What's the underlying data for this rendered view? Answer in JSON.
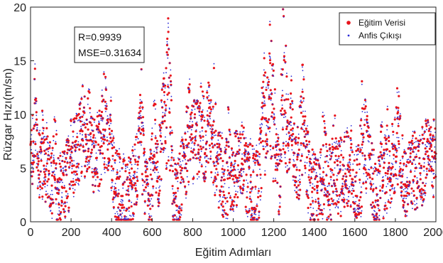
{
  "chart_data": {
    "type": "scatter",
    "title": "",
    "xlabel": "Eğitim Adımları",
    "ylabel": "Rüzgar Hızı(m/sn)",
    "xlim": [
      0,
      2000
    ],
    "ylim": [
      0,
      20
    ],
    "xticks": [
      "0",
      "200",
      "400",
      "600",
      "800",
      "1000",
      "1200",
      "1400",
      "1600",
      "1800",
      "2000"
    ],
    "yticks": [
      "0",
      "5",
      "10",
      "15",
      "20"
    ],
    "grid": false,
    "legend_position": "top-right",
    "annotation": {
      "line1": "R=0.9939",
      "line2": "MSE=0.31634"
    },
    "series": [
      {
        "name": "Eğitim Verisi",
        "color": "#e8141c",
        "marker": "dot-large"
      },
      {
        "name": "Anfis Çıkışı",
        "color": "#2b2bd6",
        "marker": "dot-small"
      }
    ],
    "anchors": [
      [
        0,
        6.0
      ],
      [
        10,
        5.5
      ],
      [
        20,
        9.0
      ],
      [
        30,
        6.5
      ],
      [
        50,
        4.5
      ],
      [
        80,
        5.5
      ],
      [
        110,
        4.0
      ],
      [
        140,
        3.0
      ],
      [
        170,
        3.5
      ],
      [
        200,
        5.5
      ],
      [
        230,
        6.5
      ],
      [
        250,
        8.0
      ],
      [
        280,
        7.0
      ],
      [
        310,
        6.0
      ],
      [
        340,
        7.0
      ],
      [
        370,
        8.5
      ],
      [
        400,
        5.0
      ],
      [
        430,
        3.0
      ],
      [
        470,
        2.0
      ],
      [
        500,
        3.5
      ],
      [
        540,
        6.5
      ],
      [
        580,
        3.0
      ],
      [
        620,
        4.5
      ],
      [
        660,
        7.0
      ],
      [
        680,
        9.0
      ],
      [
        700,
        3.0
      ],
      [
        730,
        2.5
      ],
      [
        760,
        5.0
      ],
      [
        790,
        7.5
      ],
      [
        830,
        8.0
      ],
      [
        860,
        6.5
      ],
      [
        890,
        8.0
      ],
      [
        920,
        5.0
      ],
      [
        960,
        3.5
      ],
      [
        1000,
        4.5
      ],
      [
        1040,
        5.5
      ],
      [
        1080,
        4.0
      ],
      [
        1120,
        3.0
      ],
      [
        1150,
        7.5
      ],
      [
        1180,
        10.0
      ],
      [
        1200,
        7.0
      ],
      [
        1230,
        4.0
      ],
      [
        1250,
        10.5
      ],
      [
        1280,
        6.0
      ],
      [
        1320,
        5.5
      ],
      [
        1350,
        8.0
      ],
      [
        1380,
        3.5
      ],
      [
        1420,
        2.5
      ],
      [
        1460,
        4.0
      ],
      [
        1500,
        3.0
      ],
      [
        1540,
        4.5
      ],
      [
        1580,
        5.0
      ],
      [
        1620,
        3.5
      ],
      [
        1650,
        6.5
      ],
      [
        1700,
        2.5
      ],
      [
        1730,
        3.0
      ],
      [
        1770,
        4.5
      ],
      [
        1810,
        7.0
      ],
      [
        1840,
        4.0
      ],
      [
        1880,
        4.5
      ],
      [
        1920,
        5.0
      ],
      [
        1960,
        5.5
      ],
      [
        2000,
        6.0
      ]
    ],
    "peaks": [
      [
        20,
        12.5
      ],
      [
        60,
        8.0
      ],
      [
        120,
        7.0
      ],
      [
        205,
        8.0
      ],
      [
        260,
        13.5
      ],
      [
        290,
        10.5
      ],
      [
        365,
        12.8
      ],
      [
        395,
        9.5
      ],
      [
        545,
        13.2
      ],
      [
        610,
        10.0
      ],
      [
        655,
        11.8
      ],
      [
        678,
        17.5
      ],
      [
        690,
        14.0
      ],
      [
        780,
        11.0
      ],
      [
        845,
        11.5
      ],
      [
        875,
        12.0
      ],
      [
        905,
        11.0
      ],
      [
        975,
        8.5
      ],
      [
        1150,
        14.5
      ],
      [
        1178,
        17.0
      ],
      [
        1188,
        16.5
      ],
      [
        1198,
        14.0
      ],
      [
        1245,
        18.7
      ],
      [
        1252,
        15.5
      ],
      [
        1262,
        14.0
      ],
      [
        1290,
        11.5
      ],
      [
        1340,
        14.2
      ],
      [
        1445,
        8.5
      ],
      [
        1500,
        9.0
      ],
      [
        1635,
        9.5
      ],
      [
        1650,
        9.2
      ],
      [
        1735,
        7.5
      ],
      [
        1760,
        8.5
      ],
      [
        1812,
        9.8
      ],
      [
        1820,
        9.0
      ],
      [
        1960,
        8.0
      ],
      [
        1990,
        7.5
      ]
    ]
  }
}
